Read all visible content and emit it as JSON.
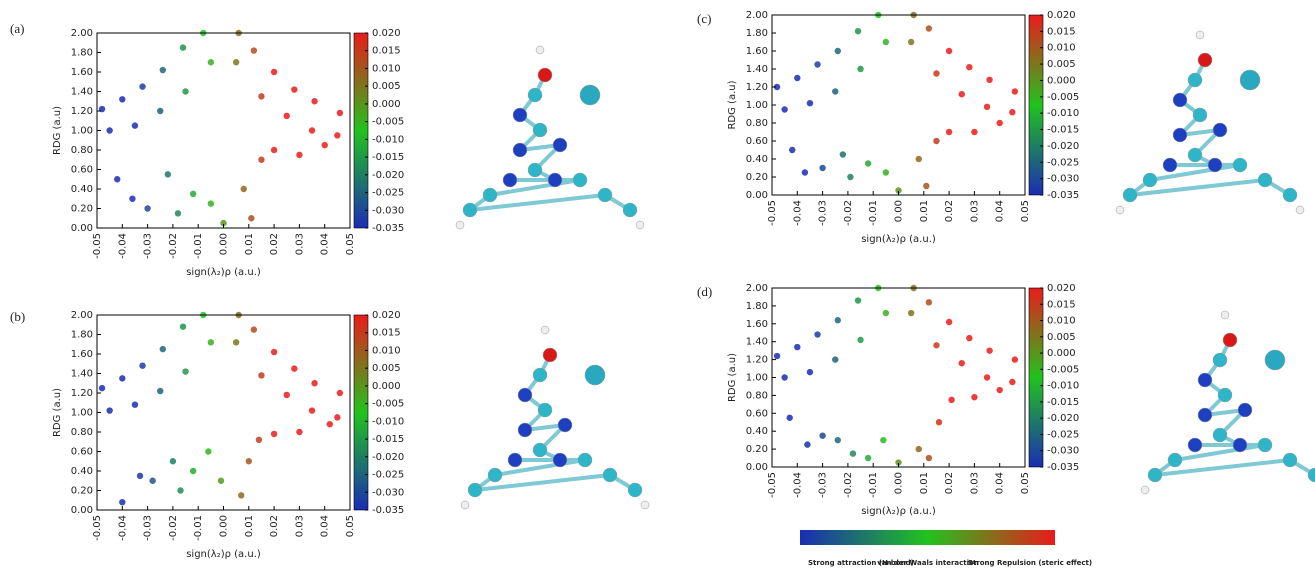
{
  "chart_data": [
    {
      "type": "scatter",
      "label": "(a)",
      "xlabel": "sign(λ₂)ρ (a.u.)",
      "ylabel": "RDG (a.u)",
      "xlim": [
        -0.05,
        0.05
      ],
      "xticks": [
        {
          "value": -0.05,
          "label": "-0.05"
        },
        {
          "value": -0.04,
          "label": "-0.04"
        },
        {
          "value": -0.03,
          "label": "-0.03"
        },
        {
          "value": -0.02,
          "label": "-0.02"
        },
        {
          "value": -0.01,
          "label": "-0.01"
        },
        {
          "value": 0,
          "label": "0.00"
        },
        {
          "value": 0.01,
          "label": "0.01"
        },
        {
          "value": 0.02,
          "label": "0.02"
        },
        {
          "value": 0.03,
          "label": "0.03"
        },
        {
          "value": 0.04,
          "label": "0.04"
        },
        {
          "value": 0.05,
          "label": "0.05"
        }
      ],
      "ylim": [
        0,
        2
      ],
      "yticks": [
        {
          "value": 0,
          "label": "0.00"
        },
        {
          "value": 0.2,
          "label": "0.20"
        },
        {
          "value": 0.4,
          "label": "0.40"
        },
        {
          "value": 0.6,
          "label": "0.60"
        },
        {
          "value": 0.8,
          "label": "0.80"
        },
        {
          "value": 1,
          "label": "1.00"
        },
        {
          "value": 1.2,
          "label": "1.20"
        },
        {
          "value": 1.4,
          "label": "1.40"
        },
        {
          "value": 1.6,
          "label": "1.60"
        },
        {
          "value": 1.8,
          "label": "1.80"
        },
        {
          "value": 2,
          "label": "2.00"
        }
      ],
      "colorbar": {
        "lim": [
          -0.035,
          0.02
        ],
        "colors": [
          "#1a2db3",
          "#22c21e",
          "#ea1b1b"
        ],
        "ticks": [
          {
            "value": 0.02,
            "label": "0.020"
          },
          {
            "value": 0.015,
            "label": "0.015"
          },
          {
            "value": 0.01,
            "label": "0.010"
          },
          {
            "value": 0.005,
            "label": "0.005"
          },
          {
            "value": 0,
            "label": "0.000"
          },
          {
            "value": -0.005,
            "label": "-0.005"
          },
          {
            "value": -0.01,
            "label": "-0.010"
          },
          {
            "value": -0.015,
            "label": "-0.015"
          },
          {
            "value": -0.02,
            "label": "-0.020"
          },
          {
            "value": -0.025,
            "label": "-0.025"
          },
          {
            "value": -0.03,
            "label": "-0.030"
          },
          {
            "value": -0.035,
            "label": "-0.035"
          }
        ]
      },
      "x": [
        -0.048,
        -0.04,
        -0.032,
        -0.024,
        -0.016,
        -0.008,
        0.006,
        0.012,
        0.02,
        0.028,
        0.036,
        0.046,
        -0.045,
        -0.035,
        -0.025,
        -0.015,
        -0.005,
        0.005,
        0.015,
        0.025,
        0.035,
        0.045,
        -0.042,
        -0.036,
        -0.03,
        -0.022,
        -0.018,
        -0.012,
        -0.005,
        0,
        0.008,
        0.011,
        0.015,
        0.02,
        0.03,
        0.04
      ],
      "y": [
        1.22,
        1.32,
        1.45,
        1.62,
        1.85,
        2,
        2,
        1.82,
        1.6,
        1.42,
        1.3,
        1.18,
        1,
        1.05,
        1.2,
        1.4,
        1.7,
        1.7,
        1.35,
        1.15,
        1,
        0.95,
        0.5,
        0.3,
        0.2,
        0.55,
        0.15,
        0.35,
        0.25,
        0.05,
        0.4,
        0.1,
        0.7,
        0.8,
        0.75,
        0.85
      ]
    },
    {
      "type": "scatter",
      "label": "(b)",
      "xlabel": "sign(λ₂)ρ (a.u.)",
      "ylabel": "RDG (a.u)",
      "xlim": [
        -0.05,
        0.05
      ],
      "xticks": [
        {
          "value": -0.05,
          "label": "-0.05"
        },
        {
          "value": -0.04,
          "label": "-0.04"
        },
        {
          "value": -0.03,
          "label": "-0.03"
        },
        {
          "value": -0.02,
          "label": "-0.02"
        },
        {
          "value": -0.01,
          "label": "-0.01"
        },
        {
          "value": 0,
          "label": "0.00"
        },
        {
          "value": 0.01,
          "label": "0.01"
        },
        {
          "value": 0.02,
          "label": "0.02"
        },
        {
          "value": 0.03,
          "label": "0.03"
        },
        {
          "value": 0.04,
          "label": "0.04"
        },
        {
          "value": 0.05,
          "label": "0.05"
        }
      ],
      "ylim": [
        0,
        2
      ],
      "yticks": [
        {
          "value": 0,
          "label": "0.00"
        },
        {
          "value": 0.2,
          "label": "0.20"
        },
        {
          "value": 0.4,
          "label": "0.40"
        },
        {
          "value": 0.6,
          "label": "0.60"
        },
        {
          "value": 0.8,
          "label": "0.80"
        },
        {
          "value": 1,
          "label": "1.00"
        },
        {
          "value": 1.2,
          "label": "1.20"
        },
        {
          "value": 1.4,
          "label": "1.40"
        },
        {
          "value": 1.6,
          "label": "1.60"
        },
        {
          "value": 1.8,
          "label": "1.80"
        },
        {
          "value": 2,
          "label": "2.00"
        }
      ],
      "colorbar": {
        "lim": [
          -0.035,
          0.02
        ],
        "colors": [
          "#1a2db3",
          "#22c21e",
          "#ea1b1b"
        ],
        "ticks": [
          {
            "value": 0.02,
            "label": "0.020"
          },
          {
            "value": 0.015,
            "label": "0.015"
          },
          {
            "value": 0.01,
            "label": "0.010"
          },
          {
            "value": 0.005,
            "label": "0.005"
          },
          {
            "value": 0,
            "label": "0.000"
          },
          {
            "value": -0.005,
            "label": "-0.005"
          },
          {
            "value": -0.01,
            "label": "-0.010"
          },
          {
            "value": -0.015,
            "label": "-0.015"
          },
          {
            "value": -0.02,
            "label": "-0.020"
          },
          {
            "value": -0.025,
            "label": "-0.025"
          },
          {
            "value": -0.03,
            "label": "-0.030"
          },
          {
            "value": -0.035,
            "label": "-0.035"
          }
        ]
      },
      "x": [
        -0.048,
        -0.04,
        -0.032,
        -0.024,
        -0.016,
        -0.008,
        0.006,
        0.012,
        0.02,
        0.028,
        0.036,
        0.046,
        -0.045,
        -0.035,
        -0.025,
        -0.015,
        -0.005,
        0.005,
        0.015,
        0.025,
        0.035,
        0.045,
        -0.04,
        -0.033,
        -0.028,
        -0.02,
        -0.017,
        -0.012,
        -0.006,
        -0.001,
        0.007,
        0.01,
        0.014,
        0.02,
        0.03,
        0.042
      ],
      "y": [
        1.25,
        1.35,
        1.48,
        1.65,
        1.88,
        2,
        2,
        1.85,
        1.62,
        1.45,
        1.3,
        1.2,
        1.02,
        1.08,
        1.22,
        1.42,
        1.72,
        1.72,
        1.38,
        1.18,
        1.02,
        0.95,
        0.08,
        0.35,
        0.3,
        0.5,
        0.2,
        0.4,
        0.6,
        0.3,
        0.15,
        0.5,
        0.72,
        0.78,
        0.8,
        0.88
      ]
    },
    {
      "type": "scatter",
      "label": "(c)",
      "xlabel": "sign(λ₂)ρ (a.u.)",
      "ylabel": "RDG (a.u)",
      "xlim": [
        -0.05,
        0.05
      ],
      "xticks": [
        {
          "value": -0.05,
          "label": "-0.05"
        },
        {
          "value": -0.04,
          "label": "-0.04"
        },
        {
          "value": -0.03,
          "label": "-0.03"
        },
        {
          "value": -0.02,
          "label": "-0.02"
        },
        {
          "value": -0.01,
          "label": "-0.01"
        },
        {
          "value": 0,
          "label": "0.00"
        },
        {
          "value": 0.01,
          "label": "0.01"
        },
        {
          "value": 0.02,
          "label": "0.02"
        },
        {
          "value": 0.03,
          "label": "0.03"
        },
        {
          "value": 0.04,
          "label": "0.04"
        },
        {
          "value": 0.05,
          "label": "0.05"
        }
      ],
      "ylim": [
        0,
        2
      ],
      "yticks": [
        {
          "value": 0,
          "label": "0.00"
        },
        {
          "value": 0.2,
          "label": "0.20"
        },
        {
          "value": 0.4,
          "label": "0.40"
        },
        {
          "value": 0.6,
          "label": "0.60"
        },
        {
          "value": 0.8,
          "label": "0.80"
        },
        {
          "value": 1,
          "label": "1.00"
        },
        {
          "value": 1.2,
          "label": "1.20"
        },
        {
          "value": 1.4,
          "label": "1.40"
        },
        {
          "value": 1.6,
          "label": "1.60"
        },
        {
          "value": 1.8,
          "label": "1.80"
        },
        {
          "value": 2,
          "label": "2.00"
        }
      ],
      "colorbar": {
        "lim": [
          -0.035,
          0.02
        ],
        "colors": [
          "#1a2db3",
          "#22c21e",
          "#ea1b1b"
        ],
        "ticks": [
          {
            "value": 0.02,
            "label": "0.020"
          },
          {
            "value": 0.015,
            "label": "0.015"
          },
          {
            "value": 0.01,
            "label": "0.010"
          },
          {
            "value": 0.005,
            "label": "0.005"
          },
          {
            "value": 0,
            "label": "0.000"
          },
          {
            "value": -0.005,
            "label": "-0.005"
          },
          {
            "value": -0.01,
            "label": "-0.010"
          },
          {
            "value": -0.015,
            "label": "-0.015"
          },
          {
            "value": -0.02,
            "label": "-0.020"
          },
          {
            "value": -0.025,
            "label": "-0.025"
          },
          {
            "value": -0.03,
            "label": "-0.030"
          },
          {
            "value": -0.035,
            "label": "-0.035"
          }
        ]
      },
      "x": [
        -0.048,
        -0.04,
        -0.032,
        -0.024,
        -0.016,
        -0.008,
        0.006,
        0.012,
        0.02,
        0.028,
        0.036,
        0.046,
        -0.045,
        -0.035,
        -0.025,
        -0.015,
        -0.005,
        0.005,
        0.015,
        0.025,
        0.035,
        0.045,
        -0.042,
        -0.037,
        -0.03,
        -0.022,
        -0.019,
        -0.012,
        -0.005,
        0,
        0.008,
        0.011,
        0.015,
        0.02,
        0.03,
        0.04
      ],
      "y": [
        1.2,
        1.3,
        1.45,
        1.6,
        1.82,
        2,
        2,
        1.85,
        1.6,
        1.42,
        1.28,
        1.15,
        0.95,
        1.02,
        1.15,
        1.4,
        1.7,
        1.7,
        1.35,
        1.12,
        0.98,
        0.92,
        0.5,
        0.25,
        0.3,
        0.45,
        0.2,
        0.35,
        0.25,
        0.05,
        0.4,
        0.1,
        0.6,
        0.7,
        0.7,
        0.8
      ]
    },
    {
      "type": "scatter",
      "label": "(d)",
      "xlabel": "sign(λ₂)ρ (a.u.)",
      "ylabel": "RDG (a.u)",
      "xlim": [
        -0.05,
        0.05
      ],
      "xticks": [
        {
          "value": -0.05,
          "label": "-0.05"
        },
        {
          "value": -0.04,
          "label": "-0.04"
        },
        {
          "value": -0.03,
          "label": "-0.03"
        },
        {
          "value": -0.02,
          "label": "-0.02"
        },
        {
          "value": -0.01,
          "label": "-0.01"
        },
        {
          "value": 0,
          "label": "0.00"
        },
        {
          "value": 0.01,
          "label": "0.01"
        },
        {
          "value": 0.02,
          "label": "0.02"
        },
        {
          "value": 0.03,
          "label": "0.03"
        },
        {
          "value": 0.04,
          "label": "0.04"
        },
        {
          "value": 0.05,
          "label": "0.05"
        }
      ],
      "ylim": [
        0,
        2
      ],
      "yticks": [
        {
          "value": 0,
          "label": "0.00"
        },
        {
          "value": 0.2,
          "label": "0.20"
        },
        {
          "value": 0.4,
          "label": "0.40"
        },
        {
          "value": 0.6,
          "label": "0.60"
        },
        {
          "value": 0.8,
          "label": "0.80"
        },
        {
          "value": 1,
          "label": "1.00"
        },
        {
          "value": 1.2,
          "label": "1.20"
        },
        {
          "value": 1.4,
          "label": "1.40"
        },
        {
          "value": 1.6,
          "label": "1.60"
        },
        {
          "value": 1.8,
          "label": "1.80"
        },
        {
          "value": 2,
          "label": "2.00"
        }
      ],
      "colorbar": {
        "lim": [
          -0.035,
          0.02
        ],
        "colors": [
          "#1a2db3",
          "#22c21e",
          "#ea1b1b"
        ],
        "ticks": [
          {
            "value": 0.02,
            "label": "0.020"
          },
          {
            "value": 0.015,
            "label": "0.015"
          },
          {
            "value": 0.01,
            "label": "0.010"
          },
          {
            "value": 0.005,
            "label": "0.005"
          },
          {
            "value": 0,
            "label": "0.000"
          },
          {
            "value": -0.005,
            "label": "-0.005"
          },
          {
            "value": -0.01,
            "label": "-0.010"
          },
          {
            "value": -0.015,
            "label": "-0.015"
          },
          {
            "value": -0.02,
            "label": "-0.020"
          },
          {
            "value": -0.025,
            "label": "-0.025"
          },
          {
            "value": -0.03,
            "label": "-0.030"
          },
          {
            "value": -0.035,
            "label": "-0.035"
          }
        ]
      },
      "x": [
        -0.048,
        -0.04,
        -0.032,
        -0.024,
        -0.016,
        -0.008,
        0.006,
        0.012,
        0.02,
        0.028,
        0.036,
        0.046,
        -0.045,
        -0.035,
        -0.025,
        -0.015,
        -0.005,
        0.005,
        0.015,
        0.025,
        0.035,
        0.045,
        -0.043,
        -0.036,
        -0.03,
        -0.024,
        -0.018,
        -0.012,
        -0.006,
        0,
        0.008,
        0.012,
        0.016,
        0.021,
        0.03,
        0.04
      ],
      "y": [
        1.24,
        1.34,
        1.48,
        1.64,
        1.86,
        2,
        2,
        1.84,
        1.62,
        1.44,
        1.3,
        1.2,
        1,
        1.06,
        1.2,
        1.42,
        1.72,
        1.72,
        1.36,
        1.16,
        1,
        0.95,
        0.55,
        0.25,
        0.35,
        0.3,
        0.15,
        0.1,
        0.3,
        0.05,
        0.2,
        0.1,
        0.5,
        0.75,
        0.78,
        0.86
      ]
    }
  ],
  "scale_legend": {
    "labels": [
      "Strong attraction (H-bond)",
      "van der Waals interaction",
      "Strong Repulsion (steric effect)"
    ]
  }
}
